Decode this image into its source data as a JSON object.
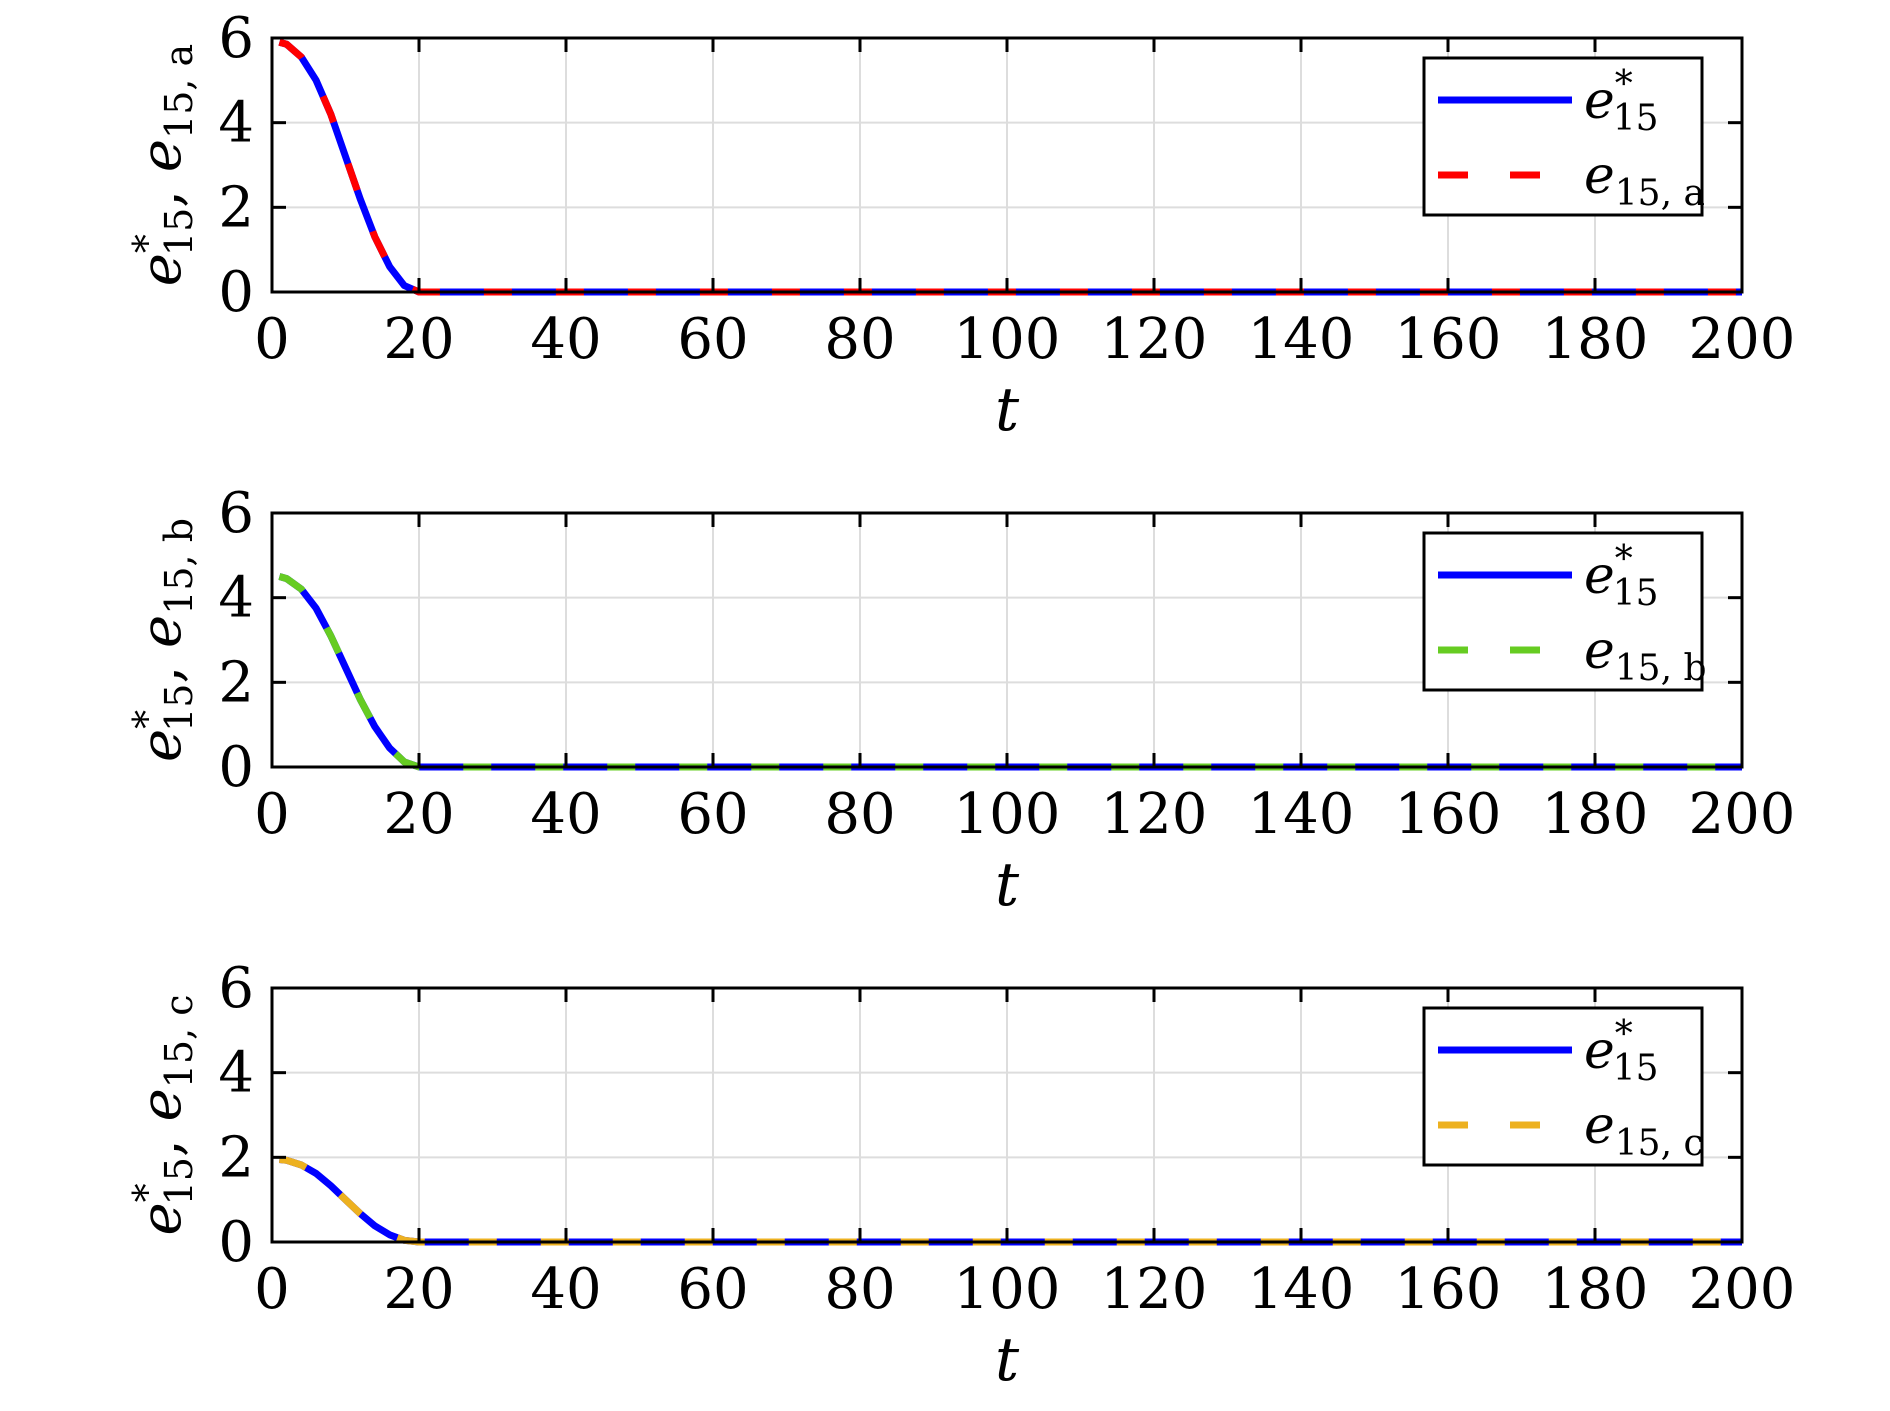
{
  "figure": {
    "background": "#ffffff",
    "grid_color": "#dddddd",
    "axis_color": "#000000"
  },
  "chart_data": [
    {
      "type": "line",
      "xlabel": "t",
      "ylabel": {
        "main": "e",
        "sup": "*",
        "sub": "15",
        "sep": ",  ",
        "main2": "e",
        "sub2": "15, a"
      },
      "xlim": [
        0,
        200
      ],
      "ylim": [
        0,
        6
      ],
      "xticks": [
        0,
        20,
        40,
        60,
        80,
        100,
        120,
        140,
        160,
        180,
        200
      ],
      "yticks": [
        0,
        2,
        4,
        6
      ],
      "grid": true,
      "legend_position": "top-right",
      "series": [
        {
          "name": {
            "main": "e",
            "sup": "*",
            "sub": "15"
          },
          "color": "#0000ff",
          "style": "solid",
          "x": [
            1,
            2,
            4,
            6,
            8,
            10,
            12,
            14,
            16,
            18,
            20,
            21,
            200
          ],
          "y": [
            5.9,
            5.85,
            5.55,
            5.0,
            4.2,
            3.2,
            2.2,
            1.3,
            0.6,
            0.15,
            0.0,
            0.0,
            0.0
          ]
        },
        {
          "name": {
            "main": "e",
            "sub": "15, a"
          },
          "color": "#ff0000",
          "style": "dashed",
          "x": [
            1,
            2,
            4,
            6,
            8,
            10,
            12,
            14,
            16,
            18,
            20,
            21,
            200
          ],
          "y": [
            5.9,
            5.85,
            5.55,
            5.0,
            4.2,
            3.2,
            2.2,
            1.3,
            0.6,
            0.15,
            0.0,
            0.0,
            0.0
          ]
        }
      ]
    },
    {
      "type": "line",
      "xlabel": "t",
      "ylabel": {
        "main": "e",
        "sup": "*",
        "sub": "15",
        "sep": ",  ",
        "main2": "e",
        "sub2": "15, b"
      },
      "xlim": [
        0,
        200
      ],
      "ylim": [
        0,
        6
      ],
      "xticks": [
        0,
        20,
        40,
        60,
        80,
        100,
        120,
        140,
        160,
        180,
        200
      ],
      "yticks": [
        0,
        2,
        4,
        6
      ],
      "grid": true,
      "legend_position": "top-right",
      "series": [
        {
          "name": {
            "main": "e",
            "sup": "*",
            "sub": "15"
          },
          "color": "#0000ff",
          "style": "solid",
          "x": [
            1,
            2,
            4,
            6,
            8,
            10,
            12,
            14,
            16,
            18,
            20,
            21,
            200
          ],
          "y": [
            4.5,
            4.45,
            4.2,
            3.75,
            3.1,
            2.35,
            1.6,
            0.95,
            0.45,
            0.12,
            0.0,
            0.0,
            0.0
          ]
        },
        {
          "name": {
            "main": "e",
            "sub": "15, b"
          },
          "color": "#66cc22",
          "style": "dashed",
          "x": [
            1,
            2,
            4,
            6,
            8,
            10,
            12,
            14,
            16,
            18,
            20,
            21,
            200
          ],
          "y": [
            4.5,
            4.45,
            4.2,
            3.75,
            3.1,
            2.35,
            1.6,
            0.95,
            0.45,
            0.12,
            0.0,
            0.0,
            0.0
          ]
        }
      ]
    },
    {
      "type": "line",
      "xlabel": "t",
      "ylabel": {
        "main": "e",
        "sup": "*",
        "sub": "15",
        "sep": ",  ",
        "main2": "e",
        "sub2": "15, c"
      },
      "xlim": [
        0,
        200
      ],
      "ylim": [
        0,
        6
      ],
      "xticks": [
        0,
        20,
        40,
        60,
        80,
        100,
        120,
        140,
        160,
        180,
        200
      ],
      "yticks": [
        0,
        2,
        4,
        6
      ],
      "grid": true,
      "legend_position": "top-right",
      "series": [
        {
          "name": {
            "main": "e",
            "sup": "*",
            "sub": "15"
          },
          "color": "#0000ff",
          "style": "solid",
          "x": [
            1,
            2,
            4,
            6,
            8,
            10,
            12,
            14,
            16,
            18,
            20,
            21,
            200
          ],
          "y": [
            1.95,
            1.93,
            1.82,
            1.62,
            1.33,
            1.0,
            0.67,
            0.38,
            0.17,
            0.04,
            0.0,
            0.0,
            0.0
          ]
        },
        {
          "name": {
            "main": "e",
            "sub": "15, c"
          },
          "color": "#edb120",
          "style": "dashed",
          "x": [
            1,
            2,
            4,
            6,
            8,
            10,
            12,
            14,
            16,
            18,
            20,
            21,
            200
          ],
          "y": [
            1.95,
            1.93,
            1.82,
            1.62,
            1.33,
            1.0,
            0.67,
            0.38,
            0.17,
            0.04,
            0.0,
            0.0,
            0.0
          ]
        }
      ]
    }
  ]
}
